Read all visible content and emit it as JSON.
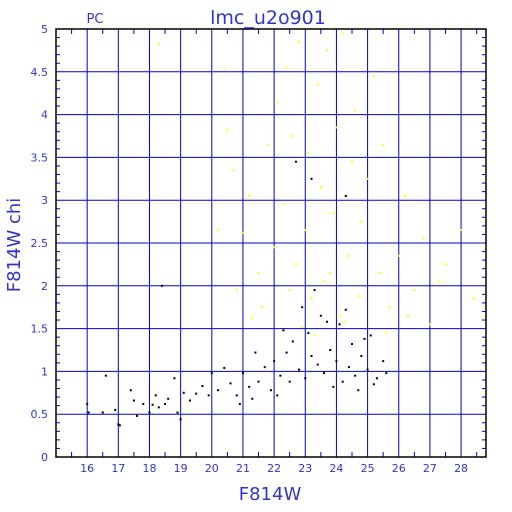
{
  "chart_data": {
    "type": "scatter",
    "title": "lmc_u2o901",
    "corner_label": "PC",
    "xlabel": "F814W",
    "ylabel": "F814W  chi",
    "xlim": [
      15,
      28.8
    ],
    "ylim": [
      0,
      5
    ],
    "x_ticks": [
      "16",
      "17",
      "18",
      "19",
      "20",
      "21",
      "22",
      "23",
      "24",
      "25",
      "26",
      "27",
      "28"
    ],
    "y_ticks": [
      "0",
      "0.5",
      "1",
      "1.5",
      "2",
      "2.5",
      "3",
      "3.5",
      "4",
      "4.5",
      "5"
    ],
    "grid": true,
    "colors": {
      "axis": "#0000cc",
      "text": "#3333cc",
      "frame": "#000000",
      "background": "#ffffff"
    },
    "series": [
      {
        "color": "#000000",
        "points": [
          [
            16.0,
            0.62
          ],
          [
            16.05,
            0.52
          ],
          [
            16.5,
            0.52
          ],
          [
            16.6,
            0.95
          ],
          [
            16.9,
            0.55
          ],
          [
            17.0,
            0.38
          ],
          [
            17.05,
            0.37
          ],
          [
            17.4,
            0.78
          ],
          [
            17.5,
            0.66
          ],
          [
            17.6,
            0.48
          ],
          [
            17.8,
            0.62
          ],
          [
            18.0,
            0.52
          ],
          [
            18.1,
            0.61
          ],
          [
            18.2,
            0.72
          ],
          [
            18.3,
            0.58
          ],
          [
            18.5,
            0.62
          ],
          [
            18.6,
            0.68
          ],
          [
            18.8,
            0.92
          ],
          [
            18.9,
            0.52
          ],
          [
            19.0,
            0.44
          ],
          [
            19.1,
            0.75
          ],
          [
            19.3,
            0.66
          ],
          [
            19.5,
            0.74
          ],
          [
            19.7,
            0.83
          ],
          [
            19.9,
            0.72
          ],
          [
            20.0,
            0.98
          ],
          [
            20.2,
            0.78
          ],
          [
            20.4,
            1.04
          ],
          [
            20.6,
            0.86
          ],
          [
            20.8,
            0.72
          ],
          [
            21.0,
            0.98
          ],
          [
            21.2,
            0.82
          ],
          [
            21.4,
            1.22
          ],
          [
            21.5,
            0.88
          ],
          [
            21.7,
            1.05
          ],
          [
            21.9,
            0.78
          ],
          [
            22.0,
            1.12
          ],
          [
            22.2,
            0.95
          ],
          [
            22.4,
            1.22
          ],
          [
            22.5,
            0.88
          ],
          [
            22.6,
            1.35
          ],
          [
            22.8,
            1.02
          ],
          [
            23.0,
            0.92
          ],
          [
            23.1,
            1.45
          ],
          [
            23.2,
            1.18
          ],
          [
            23.4,
            1.08
          ],
          [
            23.5,
            1.65
          ],
          [
            23.6,
            0.98
          ],
          [
            23.8,
            1.25
          ],
          [
            24.0,
            1.12
          ],
          [
            24.1,
            1.55
          ],
          [
            24.2,
            0.88
          ],
          [
            24.4,
            1.05
          ],
          [
            24.5,
            1.32
          ],
          [
            24.6,
            0.95
          ],
          [
            24.8,
            1.18
          ],
          [
            25.0,
            1.02
          ],
          [
            25.1,
            1.42
          ],
          [
            25.3,
            0.92
          ],
          [
            25.5,
            1.12
          ],
          [
            25.6,
            0.98
          ],
          [
            22.9,
            1.75
          ],
          [
            23.3,
            1.95
          ],
          [
            23.7,
            1.58
          ],
          [
            24.3,
            1.72
          ],
          [
            22.7,
            3.45
          ],
          [
            23.2,
            3.25
          ],
          [
            24.3,
            3.05
          ],
          [
            18.4,
            2.0
          ],
          [
            22.1,
            0.72
          ],
          [
            23.9,
            0.82
          ],
          [
            24.7,
            0.78
          ],
          [
            21.3,
            0.68
          ],
          [
            20.9,
            0.62
          ],
          [
            25.2,
            0.85
          ],
          [
            22.3,
            1.48
          ],
          [
            24.9,
            1.38
          ]
        ]
      },
      {
        "color": "#ffff00",
        "points": [
          [
            18.3,
            4.82
          ],
          [
            20.4,
            4.52
          ],
          [
            20.5,
            3.82
          ],
          [
            20.7,
            3.35
          ],
          [
            21.0,
            2.62
          ],
          [
            21.2,
            3.05
          ],
          [
            21.5,
            2.15
          ],
          [
            21.8,
            3.65
          ],
          [
            22.0,
            2.45
          ],
          [
            22.1,
            4.15
          ],
          [
            22.3,
            2.95
          ],
          [
            22.4,
            4.55
          ],
          [
            22.6,
            3.75
          ],
          [
            22.7,
            2.25
          ],
          [
            22.8,
            4.85
          ],
          [
            23.0,
            2.65
          ],
          [
            23.1,
            3.55
          ],
          [
            23.2,
            1.85
          ],
          [
            23.4,
            4.35
          ],
          [
            23.5,
            3.15
          ],
          [
            23.6,
            2.05
          ],
          [
            23.7,
            4.75
          ],
          [
            23.9,
            2.85
          ],
          [
            24.0,
            3.85
          ],
          [
            24.1,
            1.65
          ],
          [
            24.2,
            4.95
          ],
          [
            24.4,
            2.35
          ],
          [
            24.5,
            3.45
          ],
          [
            24.6,
            4.05
          ],
          [
            24.8,
            2.75
          ],
          [
            25.0,
            3.25
          ],
          [
            25.2,
            4.45
          ],
          [
            25.4,
            2.15
          ],
          [
            25.5,
            3.65
          ],
          [
            25.7,
            1.75
          ],
          [
            26.0,
            2.35
          ],
          [
            26.2,
            3.05
          ],
          [
            26.5,
            1.95
          ],
          [
            26.8,
            2.55
          ],
          [
            27.0,
            1.55
          ],
          [
            27.5,
            2.25
          ],
          [
            28.0,
            2.65
          ],
          [
            28.4,
            1.85
          ],
          [
            22.9,
            1.52
          ],
          [
            23.3,
            1.42
          ],
          [
            24.3,
            1.58
          ],
          [
            22.5,
            1.95
          ],
          [
            23.8,
            2.15
          ],
          [
            24.7,
            1.88
          ],
          [
            25.6,
            1.45
          ],
          [
            21.6,
            1.75
          ],
          [
            21.3,
            1.62
          ],
          [
            20.8,
            1.95
          ],
          [
            20.2,
            2.65
          ],
          [
            26.3,
            1.65
          ],
          [
            27.3,
            2.05
          ]
        ]
      }
    ]
  }
}
